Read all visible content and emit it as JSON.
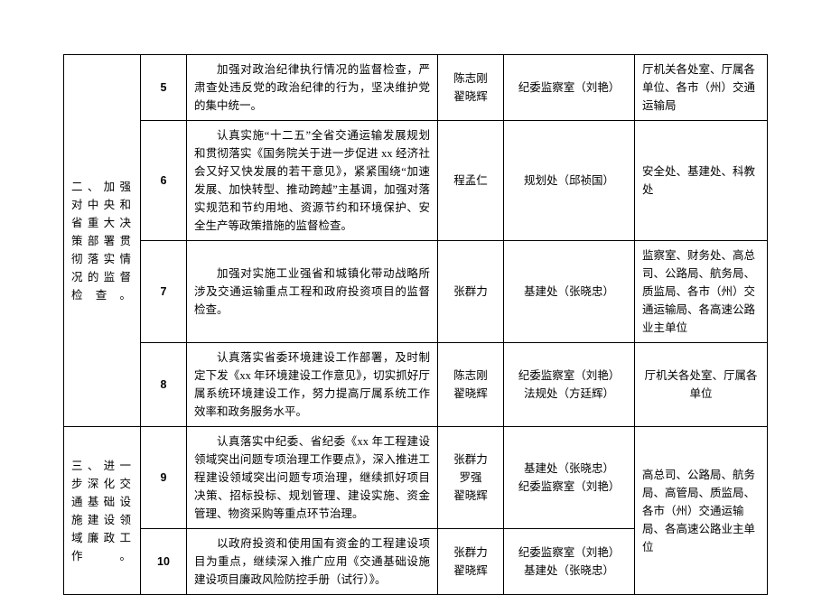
{
  "sections": {
    "s2": "二、加强对中央和省重大决策部署贯彻落实情况的监督检查。",
    "s3": "三、进一步深化交通基础设施建设领域廉政工作。"
  },
  "rows": {
    "r5": {
      "num": "5",
      "desc": "加强对政治纪律执行情况的监督检查，严肃查处违反党的政治纪律的行为，坚决维护党的集中统一。",
      "person_a": "陈志刚",
      "person_b": "翟晓辉",
      "dept": "纪委监察室（刘艳）",
      "units": "厅机关各处室、厅属各单位、各市（州）交通运输局"
    },
    "r6": {
      "num": "6",
      "desc": "认真实施“十二五”全省交通运输发展规划和贯彻落实《国务院关于进一步促进 xx 经济社会又好又快发展的若干意见》，紧紧围绕“加速发展、加快转型、推动跨越”主基调，加强对落实规范和节约用地、资源节约和环境保护、安全生产等政策措施的监督检查。",
      "person_a": "程孟仁",
      "dept": "规划处（邱祯国）",
      "units": "安全处、基建处、科教处"
    },
    "r7": {
      "num": "7",
      "desc": "加强对实施工业强省和城镇化带动战略所涉及交通运输重点工程和政府投资项目的监督检查。",
      "person_a": "张群力",
      "dept": "基建处（张晓忠）",
      "units": "监察室、财务处、高总司、公路局、航务局、质监局、各市（州）交通运输局、各高速公路业主单位"
    },
    "r8": {
      "num": "8",
      "desc": "认真落实省委环境建设工作部署，及时制定下发《xx 年环境建设工作意见》，切实抓好厅属系统环境建设工作，努力提高厅属系统工作效率和政务服务水平。",
      "person_a": "陈志刚",
      "person_b": "翟晓辉",
      "dept_a": "纪委监察室（刘艳）",
      "dept_b": "法规处（方廷辉）",
      "units": "厅机关各处室、厅属各单位"
    },
    "r9": {
      "num": "9",
      "desc": "认真落实中纪委、省纪委《xx 年工程建设领域突出问题专项治理工作要点》，深入推进工程建设领域突出问题专项治理，继续抓好项目决策、招标投标、规划管理、建设实施、资金管理、物资采购等重点环节治理。",
      "person_a": "张群力",
      "person_b": "罗强",
      "person_c": "翟晓辉",
      "dept_a": "基建处（张晓忠）",
      "dept_b": "纪委监察室（刘艳）",
      "units": "高总司、公路局、航务局、高管局、质监局、各市（州）交通运输局、各高速公路业主单位"
    },
    "r10": {
      "num": "10",
      "desc": "以政府投资和使用国有资金的工程建设项目为重点，继续深入推广应用《交通基础设施建设项目廉政风险防控手册（试行）》。",
      "person_a": "张群力",
      "person_b": "翟晓辉",
      "dept_a": "纪委监察室（刘艳）",
      "dept_b": "基建处（张晓忠）"
    }
  }
}
